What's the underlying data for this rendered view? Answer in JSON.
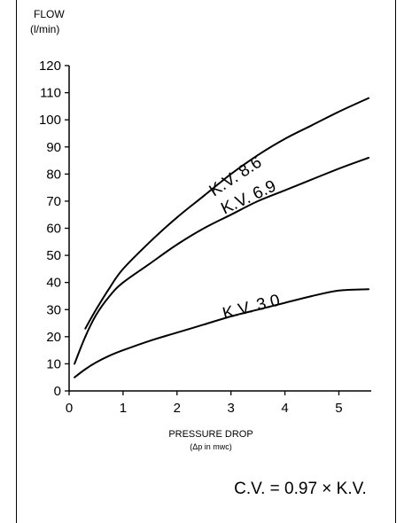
{
  "chart_data": {
    "type": "line",
    "ylabel_line1": "FLOW",
    "ylabel_line2": "(l/min)",
    "xlabel_line1": "PRESSURE DROP",
    "xlabel_line2": "(Δp in mwc)",
    "xlim": [
      0,
      5.6
    ],
    "ylim": [
      0,
      120
    ],
    "x_ticks": [
      0,
      1,
      2,
      3,
      4,
      5
    ],
    "y_ticks": [
      0,
      10,
      20,
      30,
      40,
      50,
      60,
      70,
      80,
      90,
      100,
      110,
      120
    ],
    "grid": false,
    "series": [
      {
        "name": "K.V. 8.6",
        "x": [
          0.3,
          0.5,
          0.75,
          1.0,
          1.5,
          2.0,
          2.5,
          3.0,
          3.5,
          4.0,
          4.5,
          5.0,
          5.55
        ],
        "values": [
          23,
          30,
          38,
          45,
          55,
          64,
          72,
          80,
          87,
          93,
          98,
          103,
          108
        ]
      },
      {
        "name": "K.V. 6.9",
        "x": [
          0.1,
          0.3,
          0.5,
          0.75,
          1.0,
          1.5,
          2.0,
          2.5,
          3.0,
          3.5,
          4.0,
          4.5,
          5.0,
          5.55
        ],
        "values": [
          10,
          20,
          28,
          35,
          40,
          47,
          54,
          60,
          65,
          70,
          74,
          78,
          82,
          86
        ]
      },
      {
        "name": "K.V. 3.0",
        "x": [
          0.1,
          0.3,
          0.5,
          0.75,
          1.0,
          1.5,
          2.0,
          2.5,
          3.0,
          3.5,
          4.0,
          4.5,
          5.0,
          5.55
        ],
        "values": [
          5,
          8,
          10.5,
          13,
          15,
          18.5,
          21.5,
          24.5,
          27.5,
          30,
          32.5,
          35,
          37,
          37.5
        ]
      }
    ],
    "annotation": "C.V. = 0.97 × K.V."
  }
}
